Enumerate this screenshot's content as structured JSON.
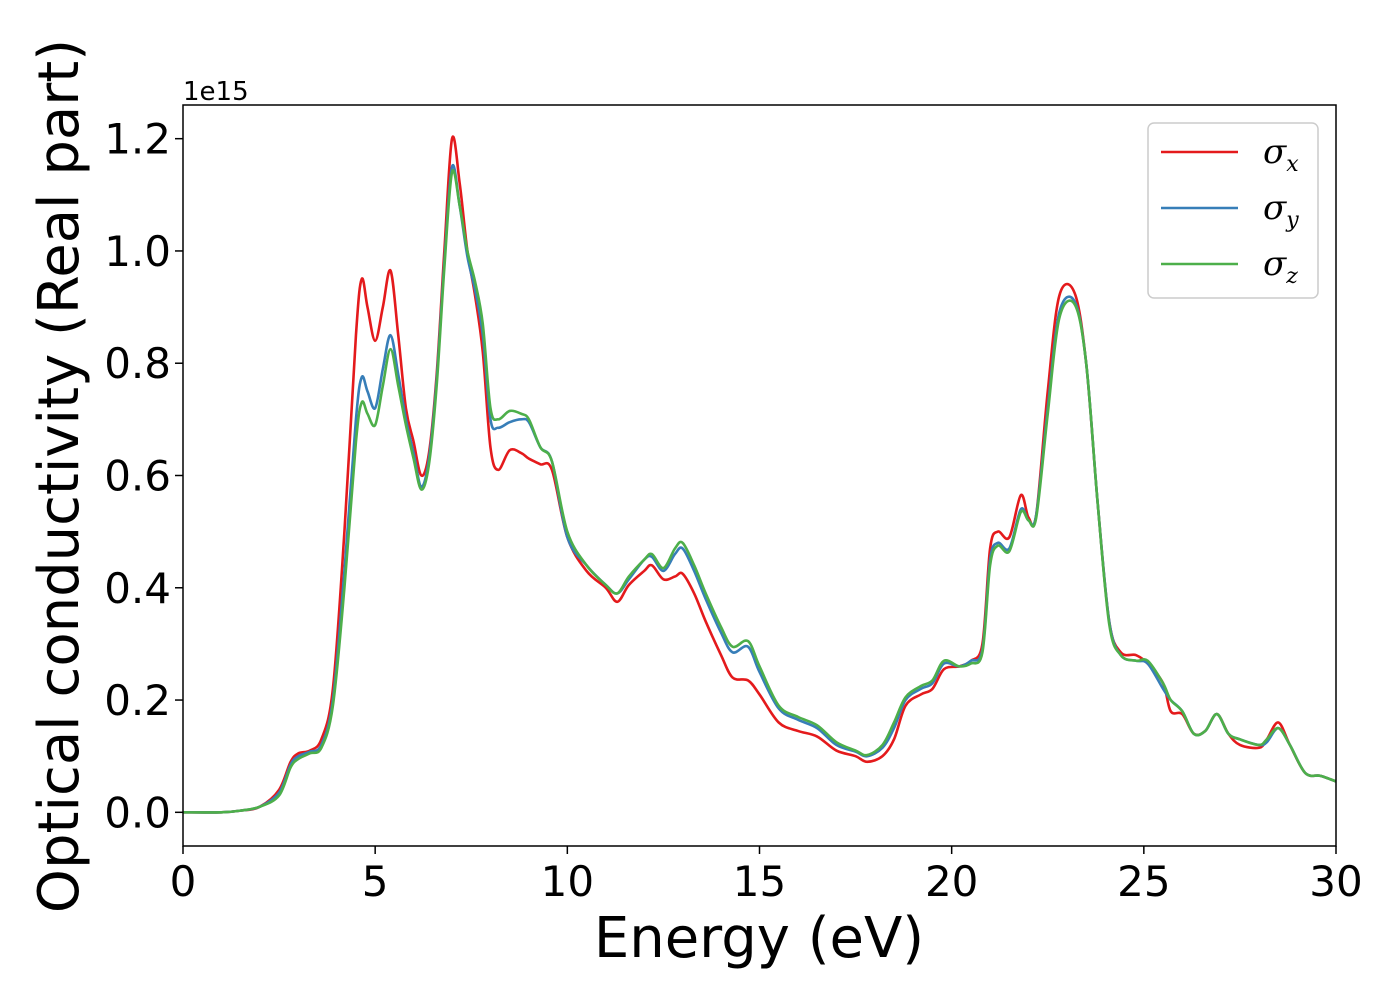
{
  "chart_data": {
    "type": "line",
    "title": "",
    "xlabel": "Energy (eV)",
    "ylabel": "Optical conductivity (Real part)",
    "y_offset_label": "1e15",
    "xlim": [
      0,
      30
    ],
    "ylim": [
      -0.06,
      1.26
    ],
    "grid": false,
    "legend_position": "top-right",
    "x_ticks": [
      0,
      5,
      10,
      15,
      20,
      25,
      30
    ],
    "x_tick_labels": [
      "0",
      "5",
      "10",
      "15",
      "20",
      "25",
      "30"
    ],
    "y_ticks": [
      0.0,
      0.2,
      0.4,
      0.6,
      0.8,
      1.0,
      1.2
    ],
    "y_tick_labels": [
      "0.0",
      "0.2",
      "0.4",
      "0.6",
      "0.8",
      "1.0",
      "1.2"
    ],
    "series": [
      {
        "name": "σ",
        "subscript": "x",
        "color": "#e41a1c",
        "points": [
          [
            0,
            0.0
          ],
          [
            1,
            0.0
          ],
          [
            1.5,
            0.003
          ],
          [
            2,
            0.01
          ],
          [
            2.5,
            0.04
          ],
          [
            2.8,
            0.09
          ],
          [
            3.0,
            0.105
          ],
          [
            3.3,
            0.11
          ],
          [
            3.6,
            0.13
          ],
          [
            3.9,
            0.22
          ],
          [
            4.2,
            0.5
          ],
          [
            4.5,
            0.85
          ],
          [
            4.65,
            0.95
          ],
          [
            4.8,
            0.9
          ],
          [
            5.0,
            0.84
          ],
          [
            5.2,
            0.9
          ],
          [
            5.4,
            0.965
          ],
          [
            5.6,
            0.85
          ],
          [
            5.8,
            0.72
          ],
          [
            6.0,
            0.66
          ],
          [
            6.2,
            0.6
          ],
          [
            6.4,
            0.64
          ],
          [
            6.6,
            0.78
          ],
          [
            6.8,
            1.0
          ],
          [
            7.0,
            1.2
          ],
          [
            7.2,
            1.12
          ],
          [
            7.4,
            1.0
          ],
          [
            7.6,
            0.92
          ],
          [
            7.8,
            0.82
          ],
          [
            8.0,
            0.65
          ],
          [
            8.2,
            0.61
          ],
          [
            8.5,
            0.645
          ],
          [
            8.8,
            0.64
          ],
          [
            9.0,
            0.63
          ],
          [
            9.3,
            0.62
          ],
          [
            9.6,
            0.61
          ],
          [
            10.0,
            0.49
          ],
          [
            10.5,
            0.43
          ],
          [
            11.0,
            0.4
          ],
          [
            11.3,
            0.375
          ],
          [
            11.6,
            0.405
          ],
          [
            12.0,
            0.43
          ],
          [
            12.2,
            0.44
          ],
          [
            12.5,
            0.415
          ],
          [
            12.8,
            0.42
          ],
          [
            13.0,
            0.425
          ],
          [
            13.3,
            0.39
          ],
          [
            13.6,
            0.34
          ],
          [
            14.0,
            0.28
          ],
          [
            14.3,
            0.24
          ],
          [
            14.7,
            0.235
          ],
          [
            15.0,
            0.21
          ],
          [
            15.5,
            0.16
          ],
          [
            16.0,
            0.145
          ],
          [
            16.5,
            0.135
          ],
          [
            17.0,
            0.11
          ],
          [
            17.5,
            0.1
          ],
          [
            17.8,
            0.09
          ],
          [
            18.2,
            0.1
          ],
          [
            18.5,
            0.13
          ],
          [
            18.8,
            0.19
          ],
          [
            19.2,
            0.21
          ],
          [
            19.5,
            0.22
          ],
          [
            19.8,
            0.255
          ],
          [
            20.2,
            0.26
          ],
          [
            20.5,
            0.27
          ],
          [
            20.8,
            0.3
          ],
          [
            21.0,
            0.47
          ],
          [
            21.2,
            0.5
          ],
          [
            21.5,
            0.49
          ],
          [
            21.8,
            0.565
          ],
          [
            22.0,
            0.525
          ],
          [
            22.2,
            0.53
          ],
          [
            22.5,
            0.75
          ],
          [
            22.8,
            0.92
          ],
          [
            23.2,
            0.925
          ],
          [
            23.5,
            0.8
          ],
          [
            23.8,
            0.55
          ],
          [
            24.1,
            0.34
          ],
          [
            24.4,
            0.285
          ],
          [
            24.8,
            0.28
          ],
          [
            25.1,
            0.265
          ],
          [
            25.5,
            0.23
          ],
          [
            25.7,
            0.18
          ],
          [
            26.0,
            0.175
          ],
          [
            26.3,
            0.14
          ],
          [
            26.6,
            0.145
          ],
          [
            26.9,
            0.175
          ],
          [
            27.2,
            0.14
          ],
          [
            27.5,
            0.12
          ],
          [
            28.0,
            0.115
          ],
          [
            28.2,
            0.13
          ],
          [
            28.5,
            0.16
          ],
          [
            28.8,
            0.12
          ],
          [
            29.2,
            0.07
          ],
          [
            29.6,
            0.065
          ],
          [
            30.0,
            0.055
          ]
        ]
      },
      {
        "name": "σ",
        "subscript": "y",
        "color": "#377eb8",
        "points": [
          [
            0,
            0.0
          ],
          [
            1,
            0.0
          ],
          [
            1.5,
            0.003
          ],
          [
            2,
            0.01
          ],
          [
            2.5,
            0.035
          ],
          [
            2.8,
            0.085
          ],
          [
            3.0,
            0.1
          ],
          [
            3.3,
            0.108
          ],
          [
            3.6,
            0.12
          ],
          [
            3.9,
            0.2
          ],
          [
            4.2,
            0.43
          ],
          [
            4.5,
            0.7
          ],
          [
            4.65,
            0.775
          ],
          [
            4.8,
            0.75
          ],
          [
            5.0,
            0.72
          ],
          [
            5.2,
            0.79
          ],
          [
            5.4,
            0.85
          ],
          [
            5.6,
            0.78
          ],
          [
            5.8,
            0.7
          ],
          [
            6.0,
            0.64
          ],
          [
            6.2,
            0.58
          ],
          [
            6.4,
            0.63
          ],
          [
            6.6,
            0.77
          ],
          [
            6.8,
            0.98
          ],
          [
            7.0,
            1.15
          ],
          [
            7.2,
            1.08
          ],
          [
            7.4,
            0.99
          ],
          [
            7.6,
            0.93
          ],
          [
            7.8,
            0.85
          ],
          [
            8.0,
            0.7
          ],
          [
            8.2,
            0.685
          ],
          [
            8.5,
            0.695
          ],
          [
            8.8,
            0.7
          ],
          [
            9.0,
            0.695
          ],
          [
            9.3,
            0.65
          ],
          [
            9.6,
            0.625
          ],
          [
            10.0,
            0.49
          ],
          [
            10.5,
            0.44
          ],
          [
            11.0,
            0.405
          ],
          [
            11.3,
            0.39
          ],
          [
            11.6,
            0.415
          ],
          [
            12.0,
            0.45
          ],
          [
            12.2,
            0.455
          ],
          [
            12.5,
            0.43
          ],
          [
            12.8,
            0.46
          ],
          [
            13.0,
            0.47
          ],
          [
            13.3,
            0.43
          ],
          [
            13.6,
            0.38
          ],
          [
            14.0,
            0.32
          ],
          [
            14.3,
            0.285
          ],
          [
            14.7,
            0.295
          ],
          [
            15.0,
            0.25
          ],
          [
            15.5,
            0.185
          ],
          [
            16.0,
            0.165
          ],
          [
            16.5,
            0.15
          ],
          [
            17.0,
            0.12
          ],
          [
            17.5,
            0.108
          ],
          [
            17.8,
            0.1
          ],
          [
            18.2,
            0.115
          ],
          [
            18.5,
            0.15
          ],
          [
            18.8,
            0.2
          ],
          [
            19.2,
            0.22
          ],
          [
            19.5,
            0.23
          ],
          [
            19.8,
            0.265
          ],
          [
            20.2,
            0.26
          ],
          [
            20.5,
            0.27
          ],
          [
            20.8,
            0.29
          ],
          [
            21.0,
            0.45
          ],
          [
            21.2,
            0.48
          ],
          [
            21.5,
            0.47
          ],
          [
            21.8,
            0.54
          ],
          [
            22.0,
            0.52
          ],
          [
            22.2,
            0.53
          ],
          [
            22.5,
            0.72
          ],
          [
            22.8,
            0.89
          ],
          [
            23.2,
            0.91
          ],
          [
            23.5,
            0.8
          ],
          [
            23.8,
            0.55
          ],
          [
            24.1,
            0.34
          ],
          [
            24.4,
            0.28
          ],
          [
            24.8,
            0.27
          ],
          [
            25.1,
            0.265
          ],
          [
            25.5,
            0.22
          ],
          [
            25.7,
            0.2
          ],
          [
            26.0,
            0.18
          ],
          [
            26.3,
            0.14
          ],
          [
            26.6,
            0.145
          ],
          [
            26.9,
            0.175
          ],
          [
            27.2,
            0.14
          ],
          [
            27.5,
            0.13
          ],
          [
            28.0,
            0.12
          ],
          [
            28.2,
            0.125
          ],
          [
            28.5,
            0.15
          ],
          [
            28.8,
            0.12
          ],
          [
            29.2,
            0.07
          ],
          [
            29.6,
            0.065
          ],
          [
            30.0,
            0.055
          ]
        ]
      },
      {
        "name": "σ",
        "subscript": "z",
        "color": "#4daf4a",
        "points": [
          [
            0,
            0.0
          ],
          [
            1,
            0.0
          ],
          [
            1.5,
            0.003
          ],
          [
            2,
            0.01
          ],
          [
            2.5,
            0.03
          ],
          [
            2.8,
            0.08
          ],
          [
            3.0,
            0.095
          ],
          [
            3.3,
            0.105
          ],
          [
            3.6,
            0.115
          ],
          [
            3.9,
            0.19
          ],
          [
            4.2,
            0.4
          ],
          [
            4.5,
            0.66
          ],
          [
            4.65,
            0.73
          ],
          [
            4.8,
            0.71
          ],
          [
            5.0,
            0.69
          ],
          [
            5.2,
            0.76
          ],
          [
            5.4,
            0.825
          ],
          [
            5.6,
            0.76
          ],
          [
            5.8,
            0.69
          ],
          [
            6.0,
            0.63
          ],
          [
            6.2,
            0.575
          ],
          [
            6.4,
            0.62
          ],
          [
            6.6,
            0.76
          ],
          [
            6.8,
            0.97
          ],
          [
            7.0,
            1.14
          ],
          [
            7.2,
            1.08
          ],
          [
            7.4,
            1.0
          ],
          [
            7.6,
            0.945
          ],
          [
            7.8,
            0.87
          ],
          [
            8.0,
            0.72
          ],
          [
            8.2,
            0.7
          ],
          [
            8.5,
            0.715
          ],
          [
            8.8,
            0.71
          ],
          [
            9.0,
            0.7
          ],
          [
            9.3,
            0.65
          ],
          [
            9.6,
            0.625
          ],
          [
            10.0,
            0.5
          ],
          [
            10.5,
            0.44
          ],
          [
            11.0,
            0.405
          ],
          [
            11.3,
            0.39
          ],
          [
            11.6,
            0.42
          ],
          [
            12.0,
            0.45
          ],
          [
            12.2,
            0.46
          ],
          [
            12.5,
            0.435
          ],
          [
            12.8,
            0.47
          ],
          [
            13.0,
            0.48
          ],
          [
            13.3,
            0.44
          ],
          [
            13.6,
            0.39
          ],
          [
            14.0,
            0.33
          ],
          [
            14.3,
            0.295
          ],
          [
            14.7,
            0.305
          ],
          [
            15.0,
            0.26
          ],
          [
            15.5,
            0.19
          ],
          [
            16.0,
            0.17
          ],
          [
            16.5,
            0.155
          ],
          [
            17.0,
            0.125
          ],
          [
            17.5,
            0.11
          ],
          [
            17.8,
            0.102
          ],
          [
            18.2,
            0.12
          ],
          [
            18.5,
            0.16
          ],
          [
            18.8,
            0.205
          ],
          [
            19.2,
            0.225
          ],
          [
            19.5,
            0.235
          ],
          [
            19.8,
            0.27
          ],
          [
            20.2,
            0.26
          ],
          [
            20.5,
            0.265
          ],
          [
            20.8,
            0.285
          ],
          [
            21.0,
            0.44
          ],
          [
            21.2,
            0.475
          ],
          [
            21.5,
            0.465
          ],
          [
            21.8,
            0.535
          ],
          [
            22.0,
            0.52
          ],
          [
            22.2,
            0.525
          ],
          [
            22.5,
            0.71
          ],
          [
            22.8,
            0.88
          ],
          [
            23.2,
            0.905
          ],
          [
            23.5,
            0.8
          ],
          [
            23.8,
            0.55
          ],
          [
            24.1,
            0.335
          ],
          [
            24.4,
            0.28
          ],
          [
            24.8,
            0.27
          ],
          [
            25.1,
            0.27
          ],
          [
            25.5,
            0.23
          ],
          [
            25.7,
            0.2
          ],
          [
            26.0,
            0.18
          ],
          [
            26.3,
            0.14
          ],
          [
            26.6,
            0.145
          ],
          [
            26.9,
            0.175
          ],
          [
            27.2,
            0.14
          ],
          [
            27.5,
            0.13
          ],
          [
            28.0,
            0.12
          ],
          [
            28.2,
            0.13
          ],
          [
            28.5,
            0.15
          ],
          [
            28.8,
            0.12
          ],
          [
            29.2,
            0.07
          ],
          [
            29.6,
            0.065
          ],
          [
            30.0,
            0.055
          ]
        ]
      }
    ]
  }
}
